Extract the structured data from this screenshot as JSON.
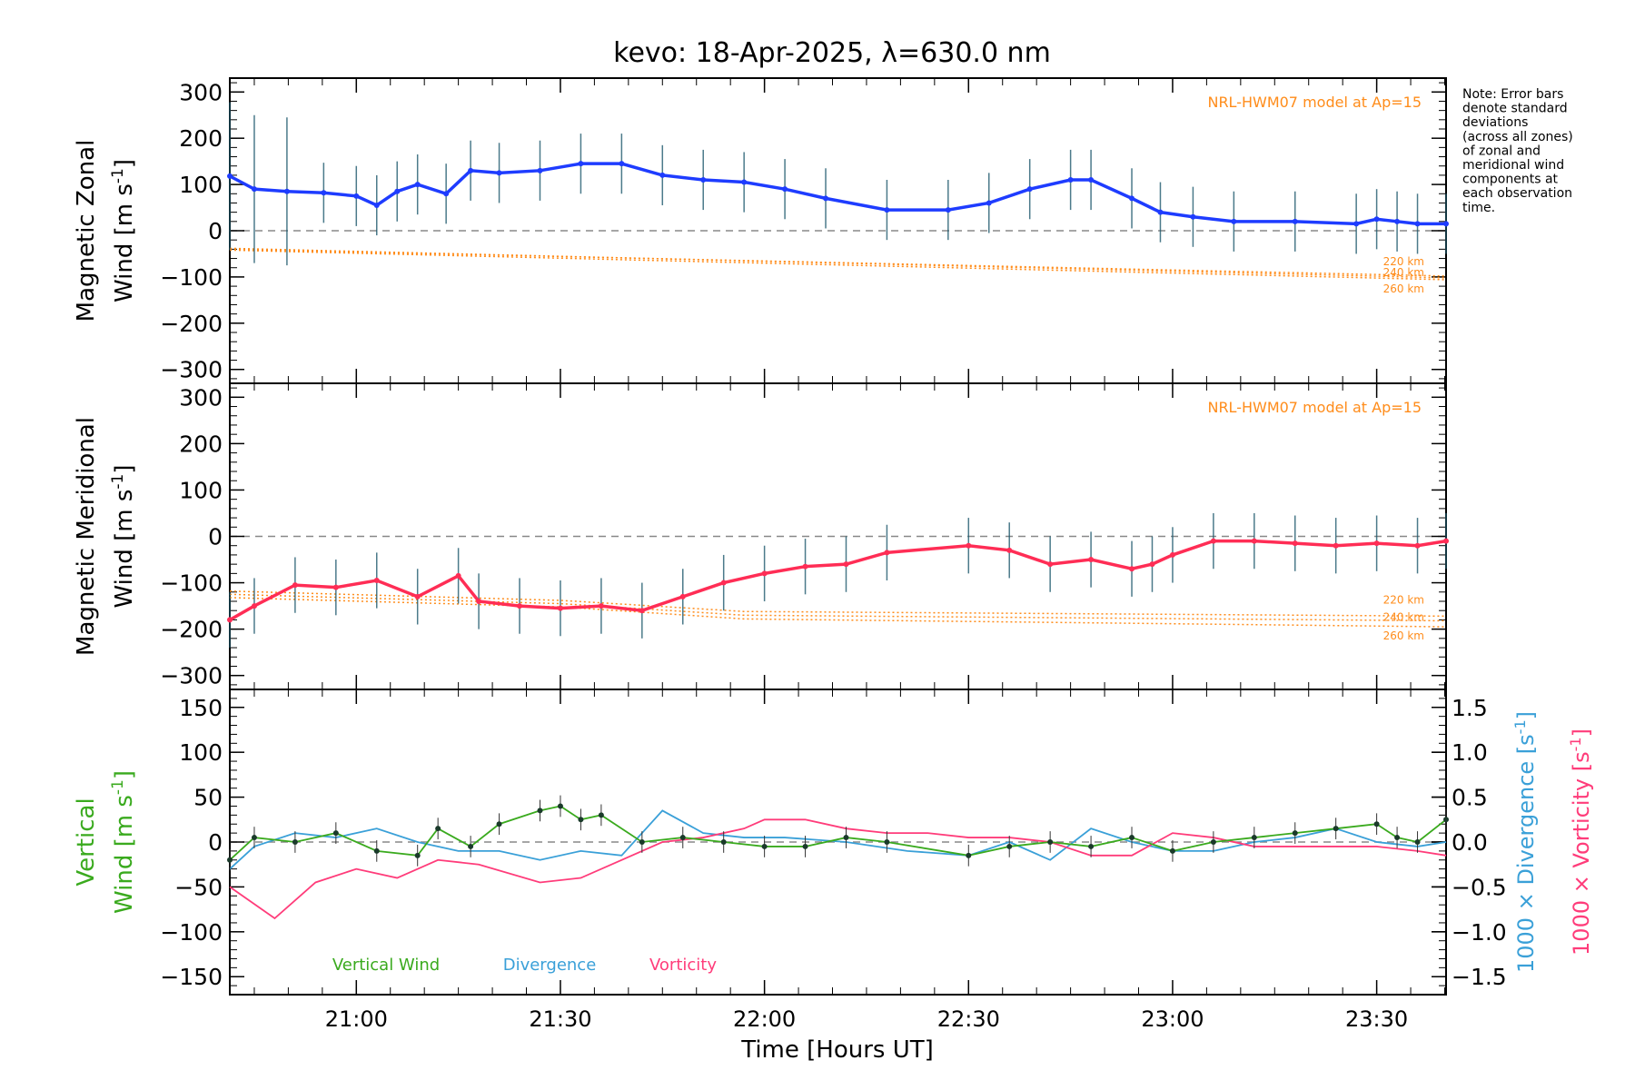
{
  "title": "kevo: 18-Apr-2025, λ=630.0 nm",
  "note": [
    "Note: Error bars",
    "denote standard",
    "deviations",
    "(across all zones)",
    "of zonal and",
    "meridional wind",
    "components at",
    "each observation",
    "time."
  ],
  "colors": {
    "zonal": "#1e3cff",
    "meridional": "#ff2d55",
    "vertical": "#3aaa1e",
    "divergence": "#3aa0d8",
    "vorticity": "#ff3c7a",
    "model": "#ff8c1a",
    "zero": "#888888"
  },
  "chart_data": [
    {
      "type": "line",
      "title": "Magnetic Zonal Wind",
      "ylabel": [
        "Magnetic Zonal",
        "Wind [m s",
        "-1",
        "]"
      ],
      "ylim": [
        -330,
        330
      ],
      "yticks": [
        300,
        200,
        100,
        0,
        -100,
        -200,
        -300
      ],
      "model_label": "NRL-HWM07 model at Ap=15",
      "model_series": [
        {
          "name": "220 km",
          "x": [
            20.69,
            23.67
          ],
          "values": [
            -38,
            -102
          ]
        },
        {
          "name": "240 km",
          "x": [
            20.69,
            23.67
          ],
          "values": [
            -40,
            -98
          ]
        },
        {
          "name": "260 km",
          "x": [
            20.69,
            23.67
          ],
          "values": [
            -42,
            -106
          ]
        }
      ],
      "series": [
        {
          "name": "Zonal wind",
          "x": [
            20.69,
            20.75,
            20.83,
            20.92,
            21.0,
            21.05,
            21.1,
            21.15,
            21.22,
            21.28,
            21.35,
            21.45,
            21.55,
            21.65,
            21.75,
            21.85,
            21.95,
            22.05,
            22.15,
            22.3,
            22.45,
            22.55,
            22.65,
            22.75,
            22.8,
            22.9,
            22.97,
            23.05,
            23.15,
            23.3,
            23.45,
            23.5,
            23.55,
            23.6,
            23.67
          ],
          "values": [
            118,
            90,
            85,
            82,
            75,
            55,
            85,
            100,
            80,
            130,
            125,
            130,
            145,
            145,
            120,
            110,
            105,
            90,
            70,
            45,
            45,
            60,
            90,
            110,
            110,
            70,
            40,
            30,
            20,
            20,
            15,
            25,
            20,
            15,
            15
          ]
        }
      ]
    },
    {
      "type": "line",
      "title": "Magnetic Meridional Wind",
      "ylabel": [
        "Magnetic Meridional",
        "Wind [m s",
        "-1",
        "]"
      ],
      "ylim": [
        -330,
        330
      ],
      "yticks": [
        300,
        200,
        100,
        0,
        -100,
        -200,
        -300
      ],
      "model_label": "NRL-HWM07 model at Ap=15",
      "model_series": [
        {
          "name": "220 km",
          "x": [
            20.69,
            21.5,
            21.95,
            23.67
          ],
          "values": [
            -118,
            -138,
            -162,
            -172
          ]
        },
        {
          "name": "240 km",
          "x": [
            20.69,
            21.5,
            21.95,
            23.67
          ],
          "values": [
            -125,
            -145,
            -170,
            -182
          ]
        },
        {
          "name": "260 km",
          "x": [
            20.69,
            21.5,
            21.95,
            23.67
          ],
          "values": [
            -132,
            -152,
            -178,
            -195
          ]
        }
      ],
      "series": [
        {
          "name": "Meridional wind",
          "x": [
            20.69,
            20.75,
            20.85,
            20.95,
            21.05,
            21.15,
            21.25,
            21.3,
            21.4,
            21.5,
            21.6,
            21.7,
            21.8,
            21.9,
            22.0,
            22.1,
            22.2,
            22.3,
            22.5,
            22.6,
            22.7,
            22.8,
            22.9,
            22.95,
            23.0,
            23.1,
            23.2,
            23.3,
            23.4,
            23.5,
            23.6,
            23.67
          ],
          "values": [
            -180,
            -150,
            -105,
            -110,
            -95,
            -130,
            -85,
            -140,
            -150,
            -155,
            -150,
            -160,
            -130,
            -100,
            -80,
            -65,
            -60,
            -35,
            -20,
            -30,
            -60,
            -50,
            -70,
            -60,
            -40,
            -10,
            -10,
            -15,
            -20,
            -15,
            -20,
            -10
          ]
        }
      ]
    },
    {
      "type": "line",
      "title": "Vertical Wind, Divergence, Vorticity",
      "ylabel": [
        "Vertical",
        "Wind [m s",
        "-1",
        "]"
      ],
      "ylim": [
        -170,
        170
      ],
      "yticks": [
        150,
        100,
        50,
        0,
        -50,
        -100,
        -150
      ],
      "y2label": [
        "1000 × Divergence [s",
        "-1",
        "]"
      ],
      "y3label": [
        "1000 × Vorticity [s",
        "-1",
        "]"
      ],
      "y2lim": [
        -1.7,
        1.7
      ],
      "y2ticks": [
        "1.5",
        "1.0",
        "0.5",
        "0.0",
        "−0.5",
        "−1.0",
        "−1.5"
      ],
      "legend": [
        "Vertical Wind",
        "Divergence",
        "Vorticity"
      ],
      "series": [
        {
          "name": "Vertical Wind",
          "axis": "left",
          "x": [
            20.69,
            20.75,
            20.85,
            20.95,
            21.05,
            21.15,
            21.2,
            21.28,
            21.35,
            21.45,
            21.5,
            21.55,
            21.6,
            21.7,
            21.8,
            21.9,
            22.0,
            22.1,
            22.2,
            22.3,
            22.5,
            22.6,
            22.7,
            22.8,
            22.9,
            23.0,
            23.1,
            23.2,
            23.3,
            23.4,
            23.5,
            23.55,
            23.6,
            23.67
          ],
          "values": [
            -20,
            5,
            0,
            10,
            -10,
            -15,
            15,
            -5,
            20,
            35,
            40,
            25,
            30,
            0,
            5,
            0,
            -5,
            -5,
            5,
            0,
            -15,
            -5,
            0,
            -5,
            5,
            -10,
            0,
            5,
            10,
            15,
            20,
            5,
            0,
            25
          ]
        },
        {
          "name": "Divergence",
          "axis": "right",
          "x": [
            20.69,
            20.75,
            20.85,
            20.95,
            21.05,
            21.15,
            21.25,
            21.35,
            21.45,
            21.55,
            21.65,
            21.75,
            21.85,
            21.95,
            22.05,
            22.2,
            22.35,
            22.5,
            22.6,
            22.7,
            22.8,
            22.9,
            23.0,
            23.1,
            23.2,
            23.3,
            23.4,
            23.5,
            23.6,
            23.67
          ],
          "values": [
            -0.3,
            -0.05,
            0.1,
            0.05,
            0.15,
            0.0,
            -0.1,
            -0.1,
            -0.2,
            -0.1,
            -0.15,
            0.35,
            0.1,
            0.05,
            0.05,
            0.0,
            -0.1,
            -0.15,
            0.0,
            -0.2,
            0.15,
            0.0,
            -0.1,
            -0.1,
            0.0,
            0.05,
            0.15,
            0.0,
            -0.05,
            0.0
          ]
        },
        {
          "name": "Vorticity",
          "axis": "right",
          "x": [
            20.69,
            20.8,
            20.9,
            21.0,
            21.1,
            21.2,
            21.3,
            21.45,
            21.55,
            21.65,
            21.75,
            21.85,
            21.95,
            22.0,
            22.1,
            22.2,
            22.3,
            22.4,
            22.5,
            22.6,
            22.7,
            22.8,
            22.9,
            23.0,
            23.1,
            23.2,
            23.3,
            23.4,
            23.5,
            23.6,
            23.67
          ],
          "values": [
            -0.5,
            -0.85,
            -0.45,
            -0.3,
            -0.4,
            -0.2,
            -0.25,
            -0.45,
            -0.4,
            -0.2,
            0.0,
            0.05,
            0.15,
            0.25,
            0.25,
            0.15,
            0.1,
            0.1,
            0.05,
            0.05,
            0.0,
            -0.15,
            -0.15,
            0.1,
            0.05,
            -0.05,
            -0.05,
            -0.05,
            -0.05,
            -0.1,
            -0.15
          ]
        }
      ]
    }
  ],
  "xaxis": {
    "xlim": [
      20.69,
      23.67
    ],
    "ticks": [
      21.0,
      21.5,
      22.0,
      22.5,
      23.0,
      23.5
    ],
    "ticklabels": [
      "21:00",
      "21:30",
      "22:00",
      "22:30",
      "23:00",
      "23:30"
    ],
    "label": "Time [Hours UT]"
  }
}
